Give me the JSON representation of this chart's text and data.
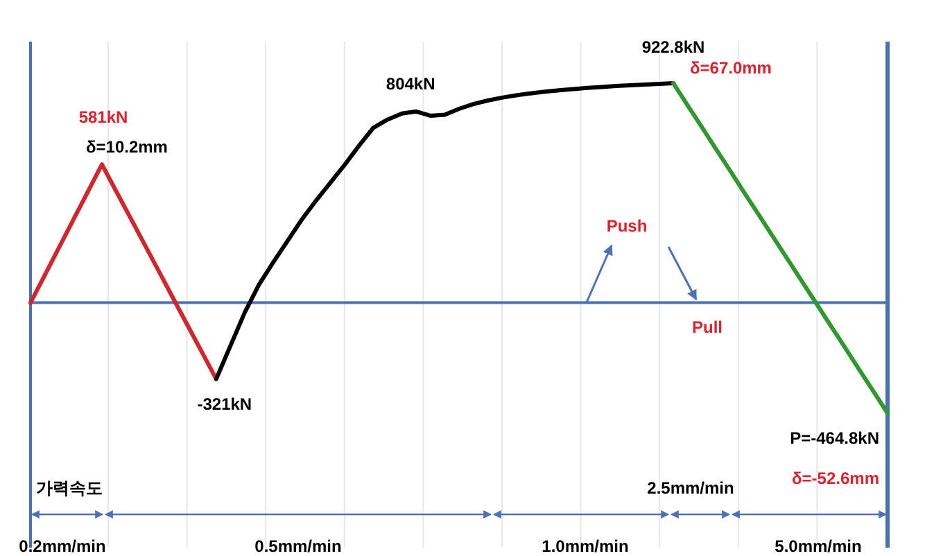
{
  "chart_data": {
    "type": "line",
    "categories": [
      null,
      null,
      null,
      null,
      null,
      null,
      null,
      null,
      null,
      null,
      null,
      null,
      null,
      null,
      null,
      null,
      null,
      null,
      null,
      null,
      null,
      null,
      null,
      null,
      null,
      null,
      null,
      null,
      null,
      null,
      null,
      null,
      null,
      null,
      null,
      null,
      null,
      null,
      null,
      null,
      null,
      null,
      null,
      null,
      null,
      null,
      null,
      null,
      null,
      null,
      null,
      null,
      null,
      null,
      null,
      null,
      null,
      null,
      null,
      null,
      null
    ],
    "series": [
      {
        "color": "#d0262c",
        "values": [
          0,
          116,
          232,
          349,
          465,
          581,
          468,
          356,
          243,
          130,
          17,
          -96,
          -208,
          -321,
          null,
          null,
          null,
          null,
          null,
          null,
          null,
          null,
          null,
          null,
          null,
          null,
          null,
          null,
          null,
          null,
          null,
          null,
          null,
          null,
          null,
          null,
          null,
          null,
          null,
          null,
          null,
          null,
          null,
          null,
          null,
          null,
          null,
          null,
          null,
          null,
          null,
          null,
          null,
          null,
          null,
          null,
          null,
          null,
          null,
          null,
          null
        ],
        "value_labels": [
          null,
          null,
          null,
          null,
          null,
          "581kN",
          null,
          null,
          null,
          null,
          null,
          null,
          null,
          "-321kN",
          null,
          null,
          null,
          null,
          null,
          null,
          null,
          null,
          null,
          null,
          null,
          null,
          null,
          null,
          null,
          null,
          null,
          null,
          null,
          null,
          null,
          null,
          null,
          null,
          null,
          null,
          null,
          null,
          null,
          null,
          null,
          null,
          null,
          null,
          null,
          null,
          null,
          null,
          null,
          null,
          null,
          null,
          null,
          null,
          null,
          null,
          null
        ]
      },
      {
        "color": "#000000",
        "values": [
          null,
          null,
          null,
          null,
          null,
          null,
          null,
          null,
          null,
          null,
          null,
          null,
          null,
          -321,
          -181,
          -41,
          76,
          170,
          260,
          350,
          430,
          505,
          580,
          660,
          735,
          770,
          795,
          804,
          786,
          790,
          815,
          835,
          850,
          862,
          872,
          880,
          887,
          893,
          898,
          903,
          907,
          911,
          914,
          917,
          920,
          922.8,
          null,
          null,
          null,
          null,
          null,
          null,
          null,
          null,
          null,
          null,
          null,
          null,
          null,
          null,
          null
        ],
        "value_labels": [
          null,
          null,
          null,
          null,
          null,
          null,
          null,
          null,
          null,
          null,
          null,
          null,
          null,
          null,
          null,
          null,
          null,
          null,
          null,
          null,
          null,
          null,
          null,
          null,
          null,
          null,
          null,
          "804kN",
          null,
          null,
          null,
          null,
          null,
          null,
          null,
          null,
          null,
          null,
          null,
          null,
          null,
          null,
          null,
          null,
          null,
          "922.8kN",
          null,
          null,
          null,
          null,
          null,
          null,
          null,
          null,
          null,
          null,
          null,
          null,
          null,
          null,
          null
        ]
      },
      {
        "color": "#2e9a2e",
        "values": [
          null,
          null,
          null,
          null,
          null,
          null,
          null,
          null,
          null,
          null,
          null,
          null,
          null,
          null,
          null,
          null,
          null,
          null,
          null,
          null,
          null,
          null,
          null,
          null,
          null,
          null,
          null,
          null,
          null,
          null,
          null,
          null,
          null,
          null,
          null,
          null,
          null,
          null,
          null,
          null,
          null,
          null,
          null,
          null,
          null,
          922.8,
          830,
          738,
          645,
          553,
          460,
          368,
          275,
          183,
          90,
          -2,
          -95,
          -187,
          -280,
          -372,
          -464.8
        ],
        "value_labels": [
          null,
          null,
          null,
          null,
          null,
          null,
          null,
          null,
          null,
          null,
          null,
          null,
          null,
          null,
          null,
          null,
          null,
          null,
          null,
          null,
          null,
          null,
          null,
          null,
          null,
          null,
          null,
          null,
          null,
          null,
          null,
          null,
          null,
          null,
          null,
          null,
          null,
          null,
          null,
          null,
          null,
          null,
          null,
          null,
          null,
          null,
          null,
          null,
          null,
          null,
          null,
          null,
          null,
          null,
          null,
          null,
          null,
          null,
          null,
          null,
          "P=-464.8kN"
        ]
      }
    ],
    "grid": "x",
    "ref_lines": [
      {
        "axis": "y",
        "value": 0,
        "color": "#4a72b8"
      }
    ],
    "annotations": [
      "δ=10.2mm",
      "δ=67.0mm",
      "δ=-52.6mm",
      "Push",
      "Pull",
      "가력속도",
      "0.2mm/min",
      "0.5mm/min",
      "1.0mm/min",
      "2.5mm/min",
      "5.0mm/min"
    ]
  }
}
